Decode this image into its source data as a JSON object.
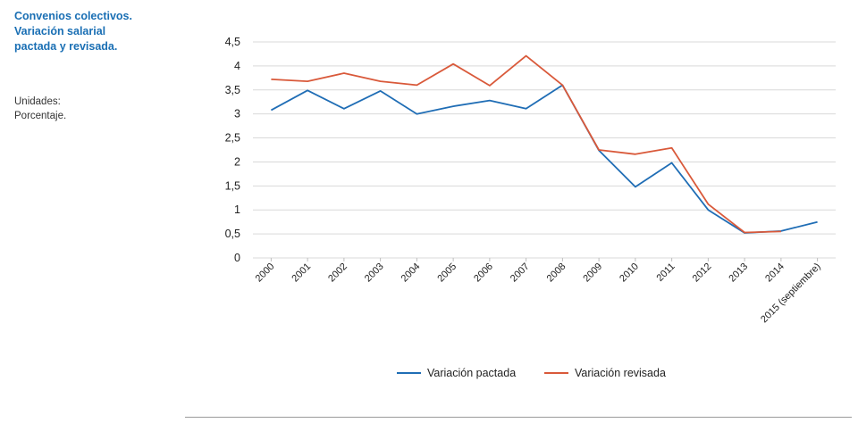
{
  "header": {
    "title": "Convenios colectivos.\nVariación salarial\npactada y revisada.",
    "units": "Unidades:\nPorcentaje."
  },
  "colors": {
    "pactada": "#1f6db5",
    "revisada": "#d9593a",
    "grid": "#d9d9d9",
    "title": "#1a6fb4"
  },
  "chart_data": {
    "type": "line",
    "title": "Convenios colectivos. Variación salarial pactada y revisada.",
    "ylabel": "Porcentaje",
    "xlabel": "",
    "ylim": [
      0,
      4.5
    ],
    "yticks": [
      "0",
      "0,5",
      "1",
      "1,5",
      "2",
      "2,5",
      "3",
      "3,5",
      "4",
      "4,5"
    ],
    "categories": [
      "2000",
      "2001",
      "2002",
      "2003",
      "2004",
      "2005",
      "2006",
      "2007",
      "2008",
      "2009",
      "2010",
      "2011",
      "2012",
      "2013",
      "2014",
      "2015 (septiembre)"
    ],
    "series": [
      {
        "name": "Variación pactada",
        "color": "#1f6db5",
        "values": [
          3.08,
          3.49,
          3.11,
          3.48,
          3.0,
          3.16,
          3.28,
          3.11,
          3.6,
          2.24,
          1.48,
          1.98,
          1.0,
          0.52,
          0.56,
          0.75
        ]
      },
      {
        "name": "Variación revisada",
        "color": "#d9593a",
        "values": [
          3.72,
          3.68,
          3.85,
          3.68,
          3.6,
          4.04,
          3.59,
          4.21,
          3.6,
          2.25,
          2.16,
          2.29,
          1.12,
          0.53,
          0.55,
          null
        ]
      }
    ],
    "legend": "bottom-center",
    "grid": true
  }
}
